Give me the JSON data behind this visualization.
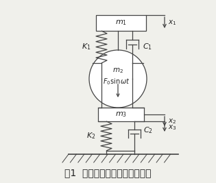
{
  "title": "图1  压路机一路基压实系统模型",
  "title_fontsize": 10,
  "bg_color": "#f0f0eb",
  "line_color": "#444444",
  "text_color": "#222222",
  "fig_width": 3.15,
  "fig_height": 2.67,
  "dpi": 100
}
